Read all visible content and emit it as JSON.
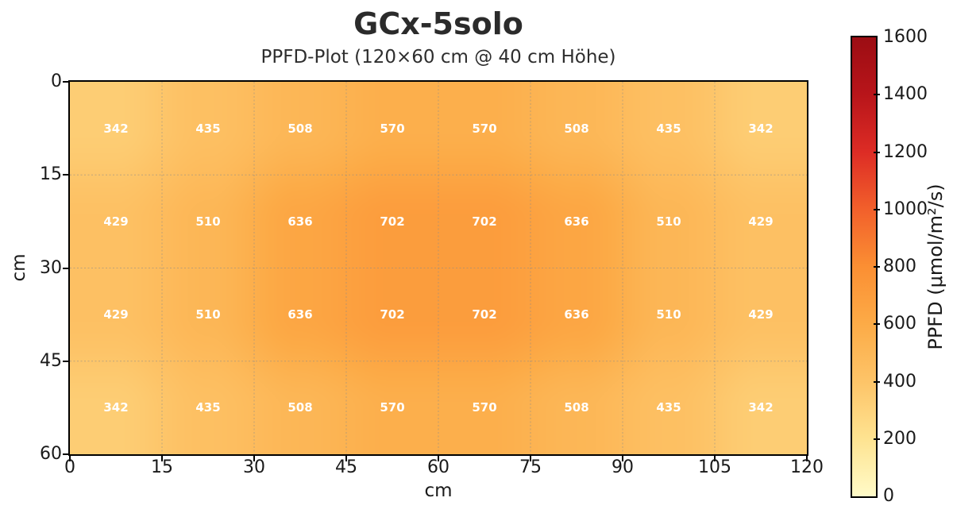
{
  "chart_data": {
    "type": "heatmap",
    "title": "GCx-5solo",
    "subtitle": "PPFD-Plot (120×60 cm @ 40 cm Höhe)",
    "xlabel": "cm",
    "ylabel": "cm",
    "xlim": [
      0,
      120
    ],
    "ylim": [
      0,
      60
    ],
    "x_ticks": [
      0,
      15,
      30,
      45,
      60,
      75,
      90,
      105,
      120
    ],
    "y_ticks": [
      0,
      15,
      30,
      45,
      60
    ],
    "x_centers": [
      7.5,
      22.5,
      37.5,
      52.5,
      67.5,
      82.5,
      97.5,
      112.5
    ],
    "y_centers": [
      7.5,
      22.5,
      37.5,
      52.5
    ],
    "values": [
      [
        342,
        435,
        508,
        570,
        570,
        508,
        435,
        342
      ],
      [
        429,
        510,
        636,
        702,
        702,
        636,
        510,
        429
      ],
      [
        429,
        510,
        636,
        702,
        702,
        636,
        510,
        429
      ],
      [
        342,
        435,
        508,
        570,
        570,
        508,
        435,
        342
      ]
    ],
    "value_color": "#ffffff",
    "grid": true,
    "grid_color": "#8a8a8a",
    "colorbar_label": "PPFD (μmol/m²/s)",
    "colorbar_ticks": [
      0,
      200,
      400,
      600,
      800,
      1000,
      1200,
      1400,
      1600
    ],
    "vmin": 0,
    "vmax": 1600,
    "colormap": [
      {
        "v": 0,
        "c": "#fffbc8"
      },
      {
        "v": 200,
        "c": "#fee391"
      },
      {
        "v": 400,
        "c": "#fdc468"
      },
      {
        "v": 600,
        "c": "#fcab47"
      },
      {
        "v": 800,
        "c": "#fb8f33"
      },
      {
        "v": 1000,
        "c": "#f2602b"
      },
      {
        "v": 1200,
        "c": "#dd2c25"
      },
      {
        "v": 1400,
        "c": "#b8151a"
      },
      {
        "v": 1600,
        "c": "#9c0d13"
      }
    ]
  }
}
